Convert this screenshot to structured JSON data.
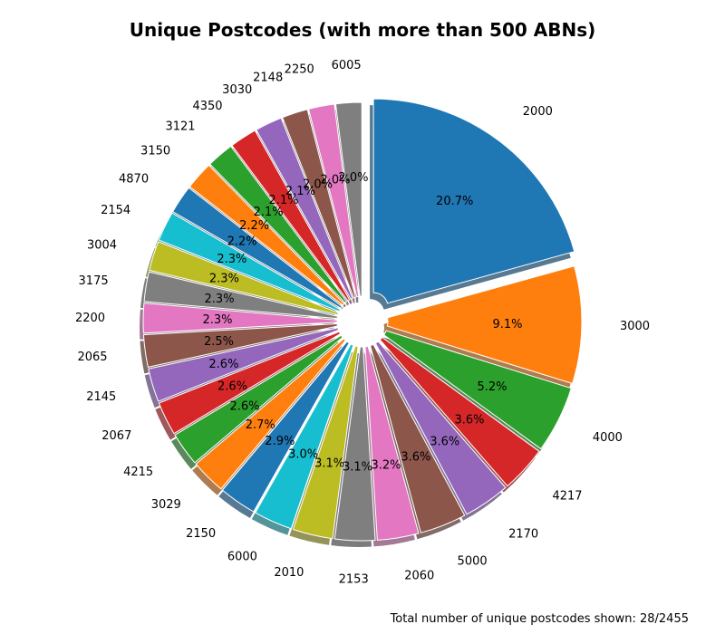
{
  "chart_data": {
    "type": "pie",
    "title": "Unique Postcodes (with more than 500 ABNs)",
    "footer": "Total number of unique postcodes shown: 28/2455",
    "start_angle": 90,
    "direction": "clockwise",
    "hole": true,
    "shadow": true,
    "slices": [
      {
        "label": "2000",
        "value": 20.7,
        "pct_label": "20.7%",
        "color": "#1f77b4"
      },
      {
        "label": "3000",
        "value": 9.1,
        "pct_label": "9.1%",
        "color": "#ff7f0e"
      },
      {
        "label": "4000",
        "value": 5.2,
        "pct_label": "5.2%",
        "color": "#2ca02c"
      },
      {
        "label": "4217",
        "value": 3.6,
        "pct_label": "3.6%",
        "color": "#d62728"
      },
      {
        "label": "2170",
        "value": 3.6,
        "pct_label": "3.6%",
        "color": "#9467bd"
      },
      {
        "label": "5000",
        "value": 3.6,
        "pct_label": "3.6%",
        "color": "#8c564b"
      },
      {
        "label": "2060",
        "value": 3.2,
        "pct_label": "3.2%",
        "color": "#e377c2"
      },
      {
        "label": "2153",
        "value": 3.1,
        "pct_label": "3.1%",
        "color": "#7f7f7f"
      },
      {
        "label": "2010",
        "value": 3.1,
        "pct_label": "3.1%",
        "color": "#bcbd22"
      },
      {
        "label": "6000",
        "value": 3.0,
        "pct_label": "3.0%",
        "color": "#17becf"
      },
      {
        "label": "2150",
        "value": 2.9,
        "pct_label": "2.9%",
        "color": "#1f77b4"
      },
      {
        "label": "3029",
        "value": 2.7,
        "pct_label": "2.7%",
        "color": "#ff7f0e"
      },
      {
        "label": "4215",
        "value": 2.6,
        "pct_label": "2.6%",
        "color": "#2ca02c"
      },
      {
        "label": "2067",
        "value": 2.6,
        "pct_label": "2.6%",
        "color": "#d62728"
      },
      {
        "label": "2145",
        "value": 2.6,
        "pct_label": "2.6%",
        "color": "#9467bd"
      },
      {
        "label": "2065",
        "value": 2.5,
        "pct_label": "2.5%",
        "color": "#8c564b"
      },
      {
        "label": "2200",
        "value": 2.3,
        "pct_label": "2.3%",
        "color": "#e377c2"
      },
      {
        "label": "3175",
        "value": 2.3,
        "pct_label": "2.3%",
        "color": "#7f7f7f"
      },
      {
        "label": "3004",
        "value": 2.3,
        "pct_label": "2.3%",
        "color": "#bcbd22"
      },
      {
        "label": "2154",
        "value": 2.3,
        "pct_label": "2.3%",
        "color": "#17becf"
      },
      {
        "label": "4870",
        "value": 2.2,
        "pct_label": "2.2%",
        "color": "#1f77b4"
      },
      {
        "label": "3150",
        "value": 2.2,
        "pct_label": "2.2%",
        "color": "#ff7f0e"
      },
      {
        "label": "3121",
        "value": 2.1,
        "pct_label": "2.1%",
        "color": "#2ca02c"
      },
      {
        "label": "4350",
        "value": 2.1,
        "pct_label": "2.1%",
        "color": "#d62728"
      },
      {
        "label": "3030",
        "value": 2.1,
        "pct_label": "2.1%",
        "color": "#9467bd"
      },
      {
        "label": "2148",
        "value": 2.0,
        "pct_label": "2.0%",
        "color": "#8c564b"
      },
      {
        "label": "2250",
        "value": 2.0,
        "pct_label": "2.0%",
        "color": "#e377c2"
      },
      {
        "label": "6005",
        "value": 2.0,
        "pct_label": "2.0%",
        "color": "#7f7f7f"
      }
    ]
  }
}
